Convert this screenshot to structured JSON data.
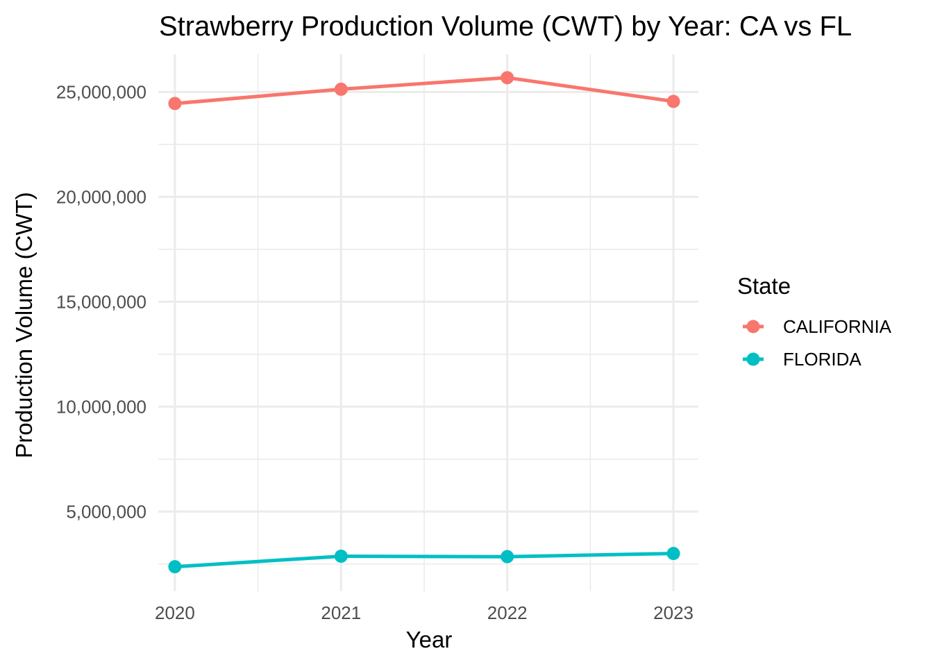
{
  "chart_data": {
    "type": "line",
    "title": "Strawberry Production Volume (CWT) by Year: CA vs FL",
    "xlabel": "Year",
    "ylabel": "Production Volume (CWT)",
    "x": [
      2020,
      2021,
      2022,
      2023
    ],
    "x_tick_labels": [
      "2020",
      "2021",
      "2022",
      "2023"
    ],
    "y_ticks": [
      5000000,
      10000000,
      15000000,
      20000000,
      25000000
    ],
    "y_tick_labels": [
      "5,000,000",
      "10,000,000",
      "15,000,000",
      "20,000,000",
      "25,000,000"
    ],
    "xlim": [
      2019.9,
      2023.15
    ],
    "ylim": [
      1200000,
      26800000
    ],
    "grid": true,
    "legend": {
      "title": "State",
      "position": "right"
    },
    "series": [
      {
        "name": "CALIFORNIA",
        "color": "#F8766D",
        "values": [
          24450000,
          25130000,
          25680000,
          24550000
        ]
      },
      {
        "name": "FLORIDA",
        "color": "#00BFC4",
        "values": [
          2370000,
          2870000,
          2850000,
          3000000
        ]
      }
    ]
  }
}
